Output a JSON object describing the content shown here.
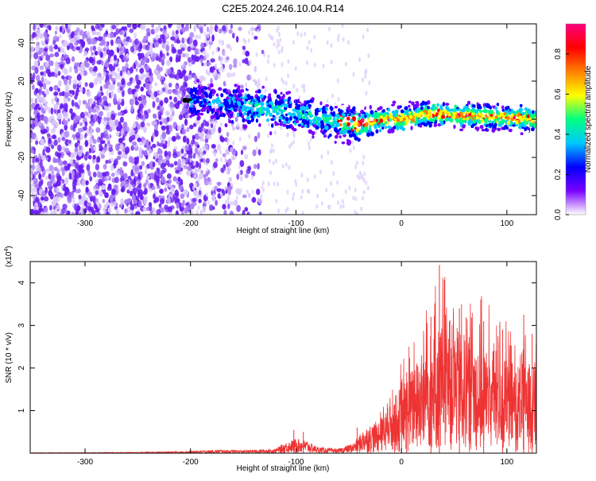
{
  "page_title": "C2E5.2024.246.10.04.R14",
  "chart_data": [
    {
      "type": "heatmap",
      "title": "C2E5.2024.246.10.04.R14",
      "xlabel": "Height of straight line (km)",
      "ylabel": "Frequency (Hz)",
      "xlim": [
        -352,
        128
      ],
      "ylim": [
        -50,
        50
      ],
      "xticks": [
        -300,
        -200,
        -100,
        0,
        100
      ],
      "yticks": [
        -40,
        -20,
        0,
        20,
        40
      ],
      "xtick_labels": [
        "-300",
        "-200",
        "-100",
        "0",
        "100"
      ],
      "ytick_labels": [
        "-40",
        "-20",
        "0",
        "20",
        "40"
      ],
      "colorbar": {
        "label": "Normalized spectral amplitude",
        "range": [
          0,
          0.95
        ],
        "ticks": [
          0.0,
          0.2,
          0.4,
          0.6,
          0.8
        ],
        "tick_labels": [
          "0.0",
          "0.2",
          "0.4",
          "0.6",
          "0.8"
        ],
        "colors": [
          "#ffffff",
          "#7a00ff",
          "#0000ff",
          "#00c8ff",
          "#00ff80",
          "#ffff00",
          "#ff7f00",
          "#ff0000",
          "#ff0080"
        ]
      },
      "band": {
        "center_hz": [
          [
            -205,
            10
          ],
          [
            -150,
            7
          ],
          [
            -100,
            3
          ],
          [
            -50,
            -2
          ],
          [
            -40,
            -3
          ],
          [
            -20,
            0
          ],
          [
            0,
            0
          ],
          [
            30,
            3
          ],
          [
            60,
            2
          ],
          [
            100,
            1
          ],
          [
            128,
            0
          ]
        ],
        "peak_amplitude": 0.9
      },
      "noise_region_km": [
        -352,
        -140
      ]
    },
    {
      "type": "line",
      "xlabel": "Height of straight line (km)",
      "ylabel": "SNR (10 * v/v)",
      "y_multiplier": "(x10",
      "y_multiplier_exp": "4",
      "xlim": [
        -352,
        128
      ],
      "ylim": [
        0,
        4.5
      ],
      "xticks": [
        -300,
        -200,
        -100,
        0,
        100
      ],
      "yticks": [
        1,
        2,
        3,
        4
      ],
      "xtick_labels": [
        "-300",
        "-200",
        "-100",
        "0",
        "100"
      ],
      "ytick_labels": [
        "1",
        "2",
        "3",
        "4"
      ],
      "series": [
        {
          "name": "SNR",
          "color": "#ee3333",
          "envelope": [
            [
              -352,
              0.01
            ],
            [
              -250,
              0.02
            ],
            [
              -200,
              0.05
            ],
            [
              -170,
              0.08
            ],
            [
              -150,
              0.07
            ],
            [
              -120,
              0.1
            ],
            [
              -110,
              0.25
            ],
            [
              -100,
              0.35
            ],
            [
              -90,
              0.3
            ],
            [
              -80,
              0.15
            ],
            [
              -60,
              0.1
            ],
            [
              -45,
              0.25
            ],
            [
              -35,
              0.6
            ],
            [
              -20,
              0.8
            ],
            [
              -10,
              1.2
            ],
            [
              0,
              1.6
            ],
            [
              20,
              2.4
            ],
            [
              40,
              3.2
            ],
            [
              60,
              2.8
            ],
            [
              80,
              2.6
            ],
            [
              100,
              2.2
            ],
            [
              128,
              2.0
            ]
          ],
          "peaks": [
            [
              -102,
              0.55
            ],
            [
              -93,
              0.5
            ],
            [
              -42,
              0.6
            ],
            [
              5,
              1.9
            ],
            [
              28,
              3.2
            ],
            [
              36,
              4.42
            ],
            [
              55,
              3.4
            ],
            [
              78,
              3.1
            ],
            [
              96,
              2.9
            ],
            [
              116,
              3.25
            ],
            [
              124,
              2.8
            ]
          ]
        }
      ]
    }
  ]
}
